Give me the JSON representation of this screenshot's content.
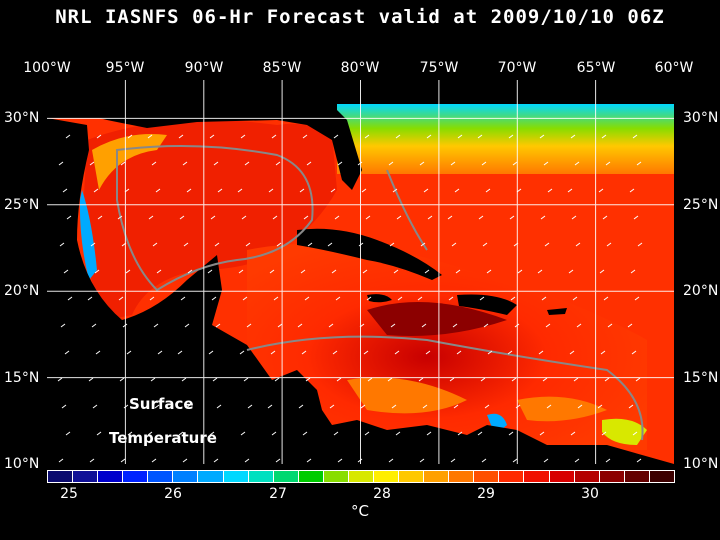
{
  "title": "NRL IASNFS  06-Hr Forecast valid at 2009/10/10 06Z",
  "longitude_labels": [
    "100°W",
    "95°W",
    "90°W",
    "85°W",
    "80°W",
    "75°W",
    "70°W",
    "65°W",
    "60°W"
  ],
  "latitude_labels": [
    "30°N",
    "25°N",
    "20°N",
    "15°N",
    "10°N"
  ],
  "map_labels": {
    "line1": "Surface",
    "line2": "Temperature"
  },
  "colorbar": {
    "colors": [
      "#0a0a6e",
      "#101097",
      "#0000cc",
      "#0022ff",
      "#0055ff",
      "#0080ff",
      "#00aaff",
      "#00d8ff",
      "#00e0c0",
      "#00d870",
      "#00cc00",
      "#88dd00",
      "#d8e800",
      "#ffee00",
      "#ffc800",
      "#ffa000",
      "#ff7800",
      "#ff5000",
      "#ff2a00",
      "#f01000",
      "#d80000",
      "#b40000",
      "#8c0000",
      "#640000",
      "#3c0000"
    ],
    "tick_labels": [
      "25",
      "26",
      "27",
      "28",
      "29",
      "30"
    ],
    "unit": "°C"
  }
}
